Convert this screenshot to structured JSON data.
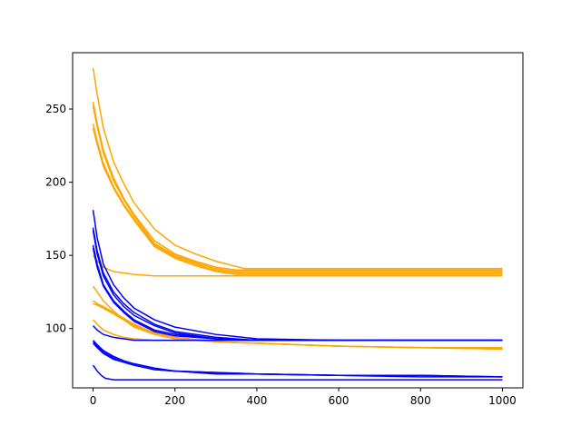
{
  "chart_data": {
    "type": "line",
    "title": "",
    "xlabel": "",
    "ylabel": "",
    "xlim": [
      -50,
      1050
    ],
    "ylim": [
      59.5,
      288.5
    ],
    "xticks": [
      0,
      200,
      400,
      600,
      800,
      1000
    ],
    "yticks": [
      100,
      150,
      200,
      250
    ],
    "grid": false,
    "legend": "none",
    "colors": {
      "orange": "#ffa500",
      "blue": "#0000ff"
    },
    "series": [
      {
        "color": "orange",
        "x": [
          0,
          10,
          25,
          50,
          75,
          100,
          150,
          200,
          250,
          300,
          370,
          400,
          600,
          800,
          1000
        ],
        "y": [
          278,
          260,
          237,
          214,
          199,
          186,
          168,
          157,
          151,
          146,
          141,
          141,
          141,
          141,
          141
        ]
      },
      {
        "color": "orange",
        "x": [
          0,
          10,
          25,
          50,
          75,
          100,
          150,
          200,
          250,
          300,
          350,
          400,
          600,
          800,
          1000
        ],
        "y": [
          255,
          240,
          222,
          203,
          189,
          178,
          160,
          151,
          146,
          142,
          140,
          140,
          140,
          140,
          140
        ]
      },
      {
        "color": "orange",
        "x": [
          0,
          10,
          25,
          50,
          75,
          100,
          150,
          200,
          250,
          300,
          350,
          400,
          600,
          800,
          1000
        ],
        "y": [
          252,
          238,
          220,
          201,
          188,
          177,
          158,
          150,
          145,
          141,
          139,
          139,
          139,
          139,
          139
        ]
      },
      {
        "color": "orange",
        "x": [
          0,
          10,
          25,
          50,
          75,
          100,
          150,
          200,
          250,
          300,
          350,
          400,
          600,
          800,
          1000
        ],
        "y": [
          240,
          228,
          213,
          197,
          185,
          175,
          157,
          149,
          144,
          140,
          138,
          138,
          138,
          138,
          138
        ]
      },
      {
        "color": "orange",
        "x": [
          0,
          10,
          25,
          50,
          75,
          100,
          150,
          200,
          250,
          300,
          350,
          400,
          600,
          800,
          1000
        ],
        "y": [
          237,
          226,
          211,
          196,
          184,
          174,
          156,
          148,
          143,
          139,
          137,
          137,
          137,
          137,
          137
        ]
      },
      {
        "color": "orange",
        "x": [
          0,
          10,
          25,
          50,
          75,
          100,
          150,
          200,
          300,
          400,
          600,
          800,
          1000
        ],
        "y": [
          150,
          146,
          142,
          139,
          138,
          137,
          136,
          136,
          136,
          136,
          136,
          136,
          136
        ]
      },
      {
        "color": "orange",
        "x": [
          0,
          10,
          25,
          50,
          75,
          100,
          150,
          200,
          300,
          400,
          600,
          800,
          1000
        ],
        "y": [
          129,
          125,
          119,
          112,
          106,
          101,
          96,
          93,
          91,
          90,
          88,
          87,
          87
        ]
      },
      {
        "color": "orange",
        "x": [
          0,
          10,
          25,
          50,
          75,
          100,
          150,
          200,
          300,
          400,
          600,
          800,
          1000
        ],
        "y": [
          119,
          117,
          115,
          111,
          107,
          103,
          97,
          94,
          91,
          90,
          88,
          87,
          86
        ]
      },
      {
        "color": "orange",
        "x": [
          0,
          10,
          25,
          50,
          75,
          100,
          150,
          200,
          300,
          400,
          600,
          800,
          1000
        ],
        "y": [
          117,
          116,
          114,
          110,
          106,
          102,
          97,
          94,
          91,
          90,
          88,
          87,
          86
        ]
      },
      {
        "color": "orange",
        "x": [
          0,
          10,
          25,
          50,
          75,
          100,
          150,
          200,
          300,
          400,
          600,
          800,
          1000
        ],
        "y": [
          106,
          103,
          99,
          96,
          94,
          93,
          92,
          92,
          92,
          92,
          92,
          92,
          92
        ]
      },
      {
        "color": "blue",
        "x": [
          0,
          10,
          25,
          50,
          75,
          100,
          150,
          200,
          300,
          400,
          600,
          800,
          1000
        ],
        "y": [
          181,
          162,
          144,
          130,
          121,
          114,
          106,
          101,
          96,
          93,
          92,
          92,
          92
        ]
      },
      {
        "color": "blue",
        "x": [
          0,
          10,
          25,
          50,
          75,
          100,
          150,
          200,
          300,
          400,
          600,
          800,
          1000
        ],
        "y": [
          169,
          153,
          138,
          125,
          117,
          111,
          103,
          98,
          94,
          92,
          92,
          92,
          92
        ]
      },
      {
        "color": "blue",
        "x": [
          0,
          10,
          25,
          50,
          75,
          100,
          150,
          200,
          300,
          400,
          600,
          800,
          1000
        ],
        "y": [
          167,
          151,
          136,
          123,
          115,
          109,
          102,
          97,
          93,
          92,
          92,
          92,
          92
        ]
      },
      {
        "color": "blue",
        "x": [
          0,
          10,
          25,
          50,
          75,
          100,
          150,
          200,
          300,
          400,
          600,
          800,
          1000
        ],
        "y": [
          157,
          144,
          130,
          119,
          112,
          106,
          99,
          96,
          93,
          92,
          92,
          92,
          92
        ]
      },
      {
        "color": "blue",
        "x": [
          0,
          10,
          25,
          50,
          75,
          100,
          150,
          200,
          300,
          400,
          600,
          800,
          1000
        ],
        "y": [
          155,
          142,
          129,
          118,
          111,
          105,
          98,
          95,
          93,
          92,
          92,
          92,
          92
        ]
      },
      {
        "color": "blue",
        "x": [
          0,
          10,
          25,
          50,
          75,
          100,
          150,
          200,
          300,
          400,
          600,
          800,
          1000
        ],
        "y": [
          102,
          99,
          96,
          94,
          93,
          92,
          92,
          92,
          92,
          92,
          92,
          92,
          92
        ]
      },
      {
        "color": "blue",
        "x": [
          0,
          10,
          25,
          50,
          75,
          100,
          150,
          200,
          300,
          400,
          600,
          800,
          1000
        ],
        "y": [
          92,
          89,
          85,
          81,
          78,
          76,
          73,
          71,
          70,
          69,
          68,
          68,
          67
        ]
      },
      {
        "color": "blue",
        "x": [
          0,
          10,
          25,
          50,
          75,
          100,
          150,
          200,
          300,
          400,
          600,
          800,
          1000
        ],
        "y": [
          91,
          88,
          84,
          80,
          77,
          75,
          72,
          71,
          70,
          69,
          68,
          68,
          67
        ]
      },
      {
        "color": "blue",
        "x": [
          0,
          10,
          25,
          50,
          75,
          100,
          150,
          200,
          300,
          400,
          600,
          800,
          1000
        ],
        "y": [
          90,
          87,
          83,
          79,
          77,
          75,
          72,
          71,
          69,
          69,
          68,
          67,
          67
        ]
      },
      {
        "color": "blue",
        "x": [
          0,
          10,
          20,
          30,
          50,
          75,
          100,
          150,
          200,
          400,
          600,
          800,
          1000
        ],
        "y": [
          75,
          71,
          68,
          66,
          65,
          65,
          65,
          65,
          65,
          65,
          65,
          65,
          65
        ]
      }
    ]
  }
}
